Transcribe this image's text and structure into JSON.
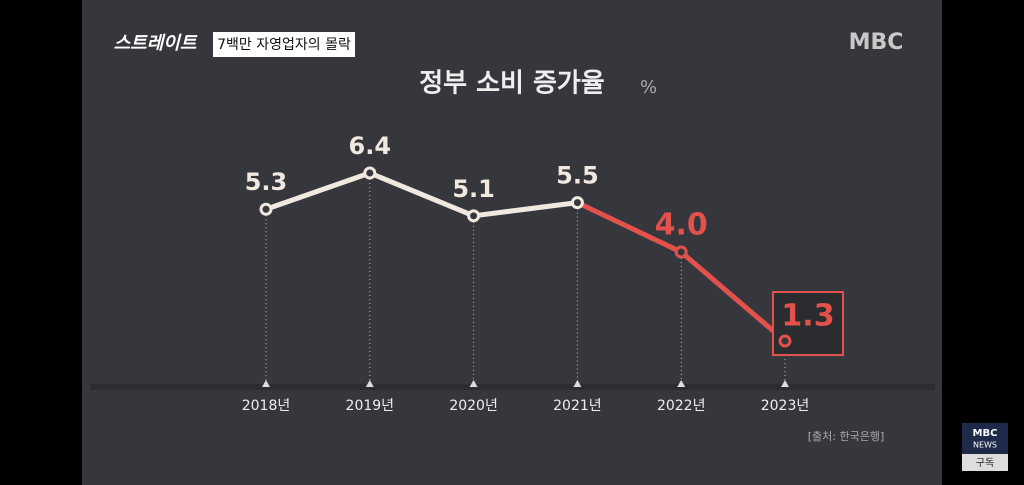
{
  "header": {
    "logo": "스트레이트",
    "caption": "7백만 자영업자의 몰락",
    "broadcaster": "MBC"
  },
  "chart_data": {
    "type": "line",
    "title": "정부 소비 증가율",
    "unit": "%",
    "categories": [
      "2018년",
      "2019년",
      "2020년",
      "2021년",
      "2022년",
      "2023년"
    ],
    "values": [
      5.3,
      6.4,
      5.1,
      5.5,
      4.0,
      1.3
    ],
    "value_labels": [
      "5.3",
      "6.4",
      "5.1",
      "5.5",
      "4.0",
      "1.3"
    ],
    "color": "#f1e9df",
    "point_colors": [
      "#f1e9df",
      "#f1e9df",
      "#f1e9df",
      "#f1e9df",
      "#e2514b",
      "#e2514b"
    ]
  },
  "source": "[출처: 한국은행]",
  "subscribe": {
    "brand": "MBC",
    "sub_brand": "NEWS",
    "button": "구독"
  }
}
